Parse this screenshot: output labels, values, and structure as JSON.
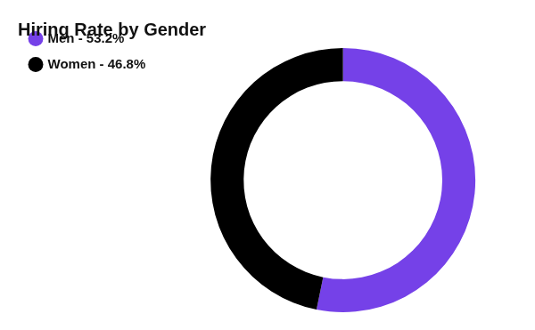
{
  "chart_data": {
    "type": "doughnut",
    "title": "Hiring Rate by Gender",
    "categories": [
      "Men - 53.2%",
      "Women - 46.8%"
    ],
    "values": [
      53.2,
      46.8
    ],
    "colors": [
      "#7541e8",
      "#000000"
    ],
    "legend": "top-left"
  }
}
